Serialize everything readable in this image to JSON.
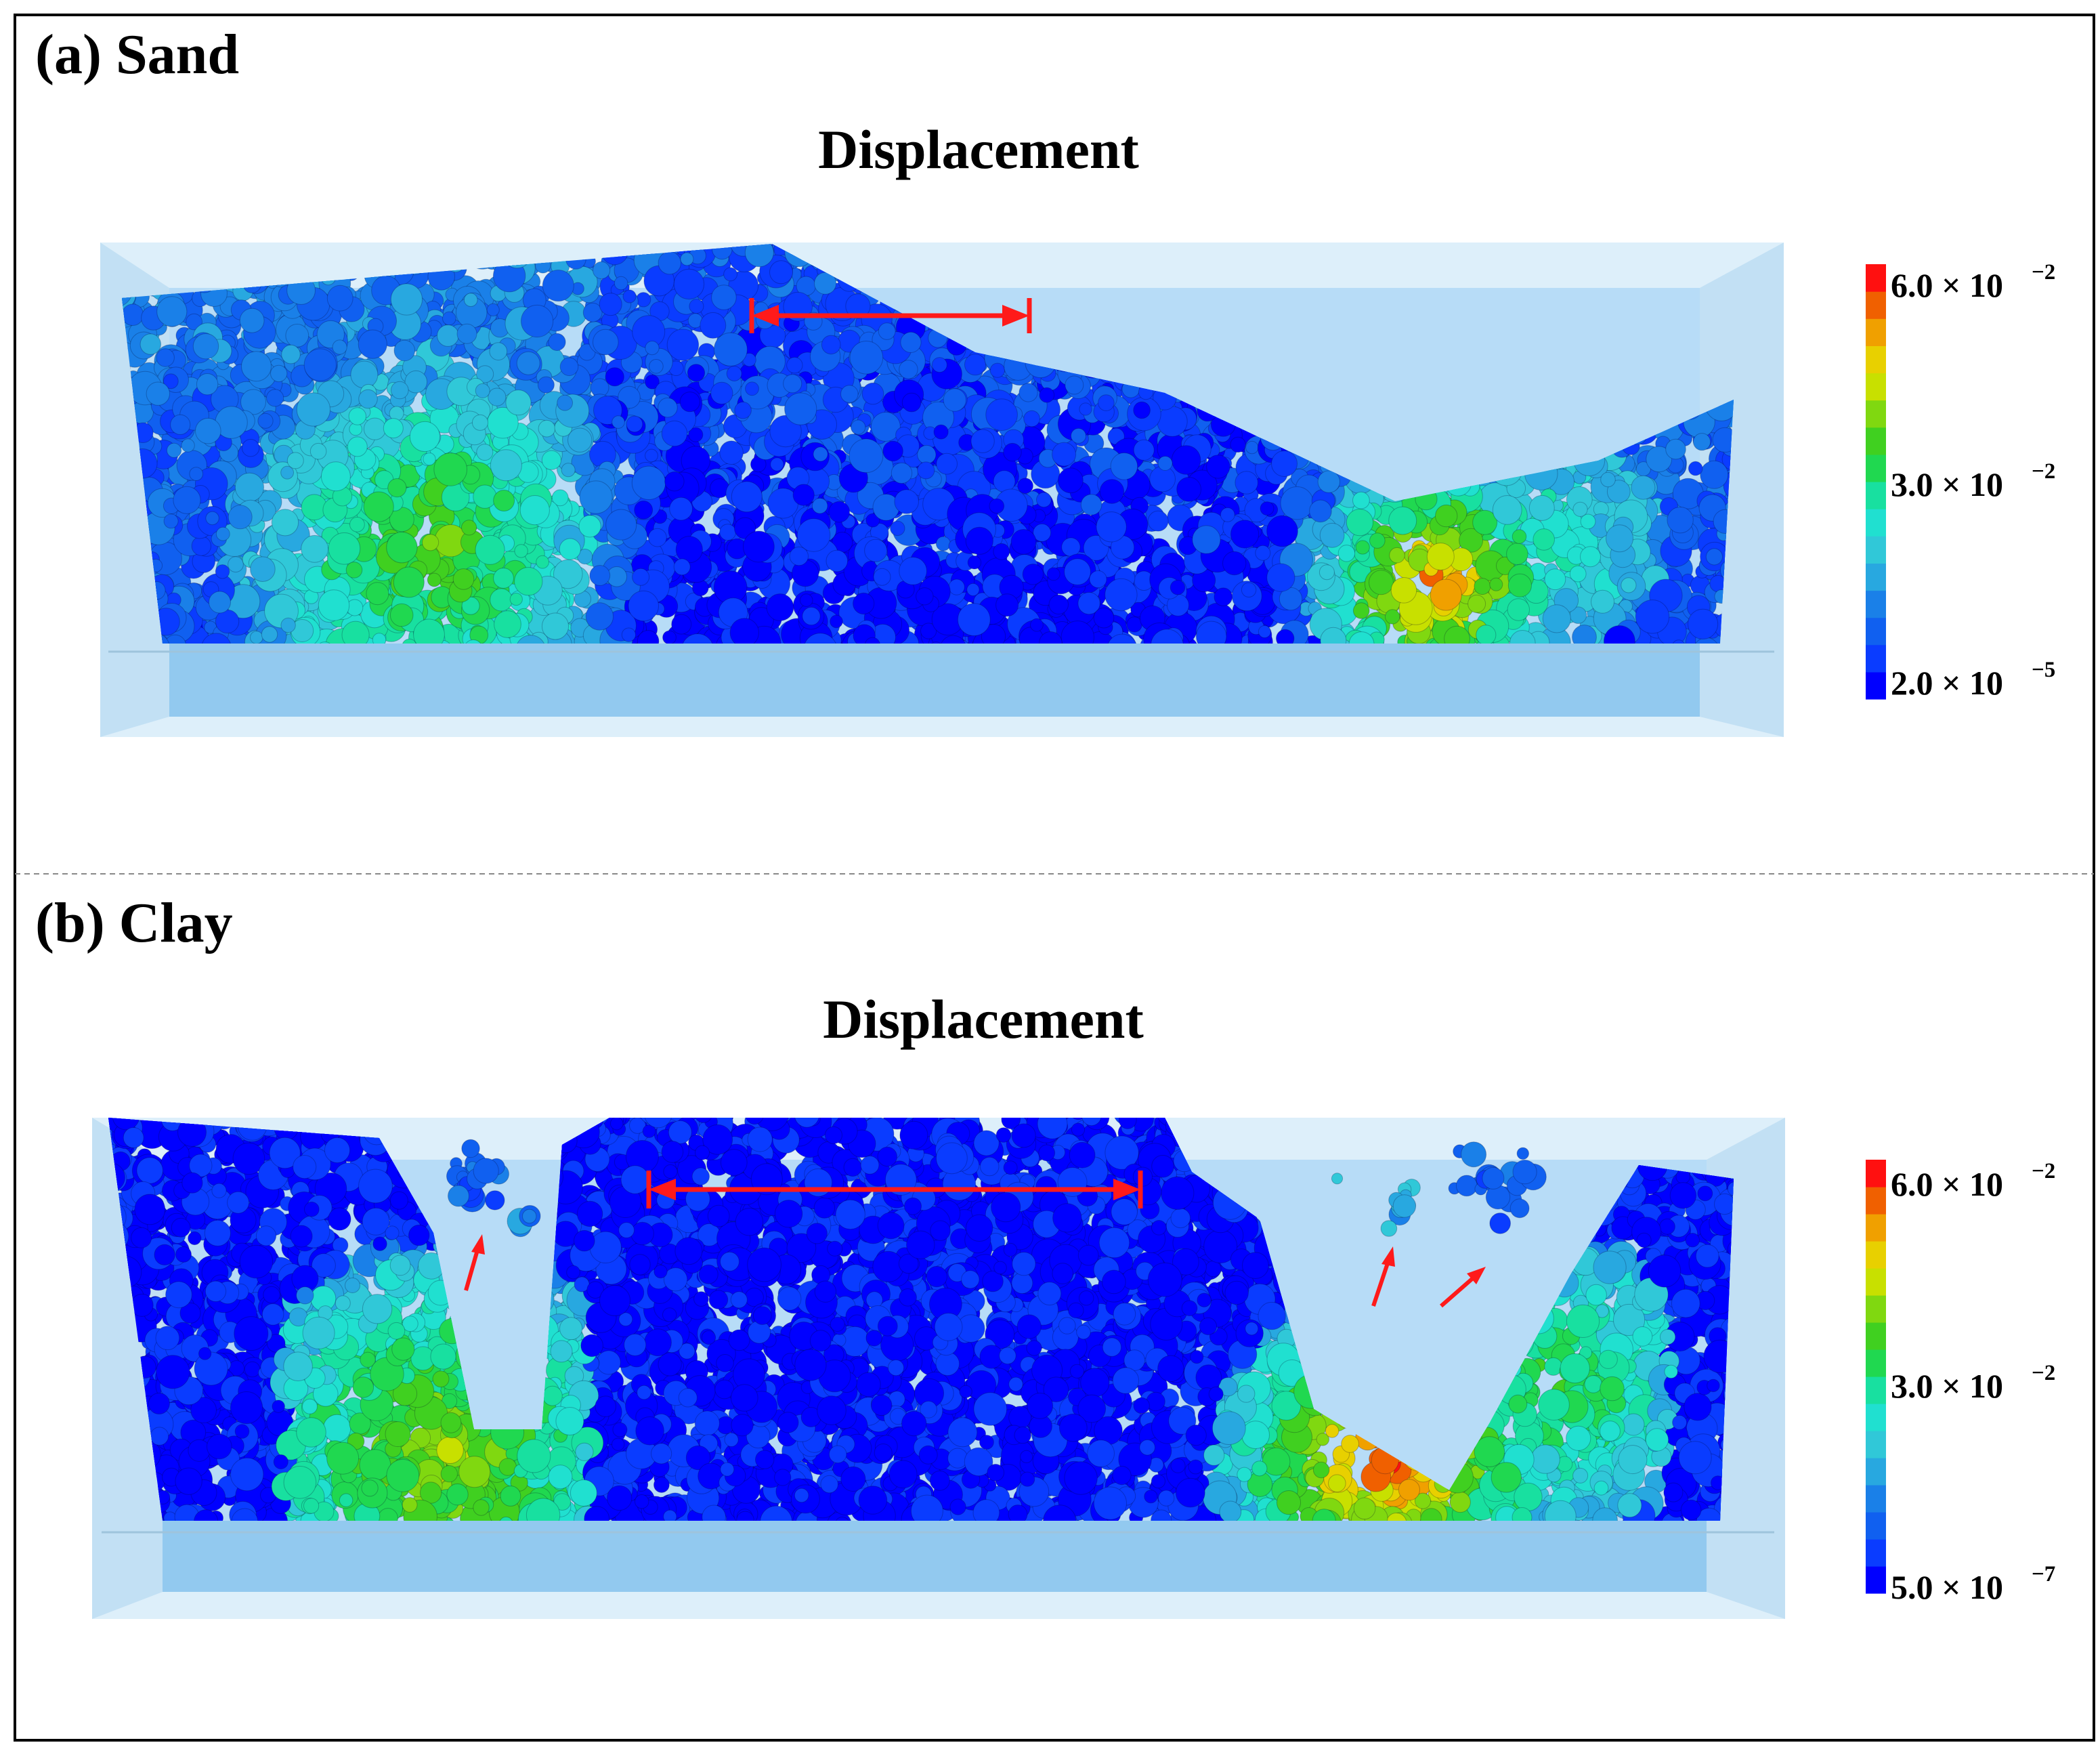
{
  "panels": [
    {
      "id": "sand",
      "label": "(a) Sand",
      "title": "Displacement",
      "colorbar": {
        "ticks": [
          {
            "mantissa": "6.0",
            "exp": "−2"
          },
          {
            "mantissa": "3.0",
            "exp": "−2"
          },
          {
            "mantissa": "2.0",
            "exp": "−5"
          }
        ],
        "levels": 16
      },
      "arrow_count": 0
    },
    {
      "id": "clay",
      "label": "(b) Clay",
      "title": "Displacement",
      "colorbar": {
        "ticks": [
          {
            "mantissa": "6.0",
            "exp": "−2"
          },
          {
            "mantissa": "3.0",
            "exp": "−2"
          },
          {
            "mantissa": "5.0",
            "exp": "−7"
          }
        ],
        "levels": 16
      },
      "arrow_count": 3
    }
  ],
  "colors": {
    "colormap": [
      "#0000ff",
      "#0a3cff",
      "#1060f0",
      "#1a80e8",
      "#28a8e0",
      "#30c8d8",
      "#20e0d0",
      "#18e0a0",
      "#20d850",
      "#40d020",
      "#80d810",
      "#c8e000",
      "#e8d000",
      "#f0a000",
      "#f06000",
      "#ff1010"
    ],
    "container": "#a9d6f5",
    "arrow": "#ff1a1a",
    "frame": "#000000",
    "divider": "#888888"
  }
}
